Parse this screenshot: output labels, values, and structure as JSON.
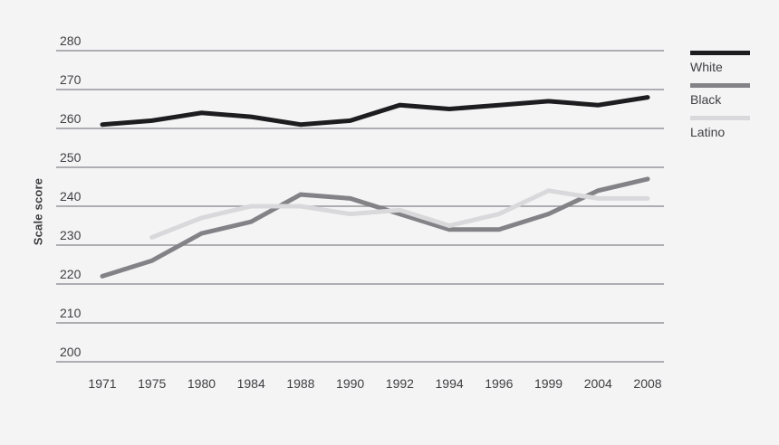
{
  "figure": {
    "background_color": "#f5f4f5",
    "grid_color": "#97979b",
    "text_color": "#3e3e41",
    "y_axis_title": "Scale score"
  },
  "legend": {
    "items": [
      {
        "label": "White",
        "color": "#1d1d1f"
      },
      {
        "label": "Black",
        "color": "#828287"
      },
      {
        "label": "Latino",
        "color": "#d9d8da"
      }
    ]
  },
  "chart_data": {
    "type": "line",
    "title": "",
    "xlabel": "",
    "ylabel": "Scale score",
    "ylim": [
      200,
      280
    ],
    "yticks": [
      200,
      210,
      220,
      230,
      240,
      250,
      260,
      270,
      280
    ],
    "grid": true,
    "legend_position": "right",
    "categories": [
      "1971",
      "1975",
      "1980",
      "1984",
      "1988",
      "1990",
      "1992",
      "1994",
      "1996",
      "1999",
      "2004",
      "2008"
    ],
    "series": [
      {
        "name": "White",
        "color": "#1d1d1f",
        "values": [
          261,
          262,
          264,
          263,
          261,
          262,
          266,
          265,
          266,
          267,
          266,
          268
        ]
      },
      {
        "name": "Black",
        "color": "#828287",
        "values": [
          222,
          226,
          233,
          236,
          243,
          242,
          238,
          234,
          234,
          238,
          244,
          247
        ]
      },
      {
        "name": "Latino",
        "color": "#d9d8da",
        "values": [
          null,
          232,
          237,
          240,
          240,
          238,
          239,
          235,
          238,
          244,
          242,
          242
        ]
      }
    ]
  }
}
